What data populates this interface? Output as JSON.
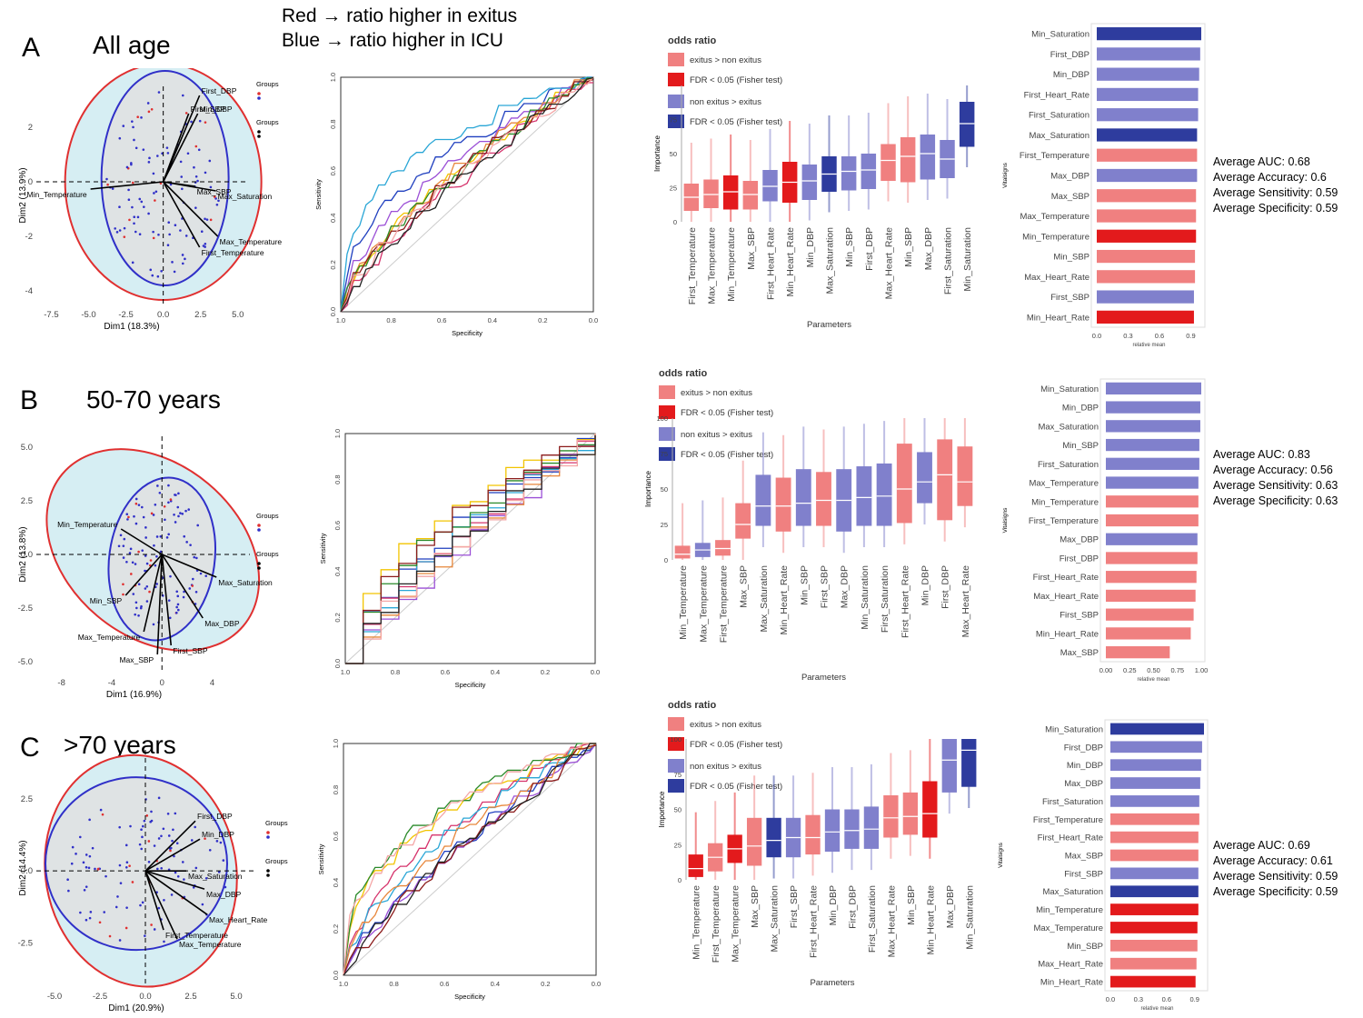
{
  "header": {
    "line1": "Red → ratio higher in exitus",
    "line2": "Blue → ratio higher in ICU"
  },
  "colors": {
    "red_light": "#f08080",
    "red_dark": "#e31a1c",
    "blue_light": "#8080cc",
    "blue_dark": "#2e3c9e",
    "pca_red": "#e03030",
    "pca_blue": "#3030c8",
    "pca_fill": "#d6eef3",
    "pca_overlap": "#e0e0e0"
  },
  "legend": {
    "title": "odds ratio",
    "items": [
      "exitus > non exitus",
      "FDR < 0.05 (Fisher test)",
      "non exitus > exitus",
      "FDR < 0.05 (Fisher test)"
    ]
  },
  "labels": {
    "pca_groups": "Groups",
    "importance_x": "Parameters",
    "importance_y": "Importance",
    "bar_x": "relative mean",
    "bar_y": "Vitalsigns",
    "roc_x": "Specificity",
    "roc_y": "Sensitivity"
  },
  "panels": [
    {
      "id": "A",
      "title": "All age",
      "pca": {
        "xlabel": "Dim1 (18.3%)",
        "ylabel": "Dim2 (13.9%)",
        "xticks": [
          "-7.5",
          "-5.0",
          "-2.5",
          "0.0",
          "2.5",
          "5.0"
        ],
        "yticks": [
          "2",
          "0",
          "-2",
          "-4"
        ],
        "vectors": [
          "First_DBP",
          "Min_DBP",
          "First_SBP",
          "Max_SBP",
          "Min_Temperature",
          "Max_Saturation",
          "Max_Temperature",
          "First_Temperature"
        ]
      },
      "stats": [
        "Average AUC: 0.68",
        "Average Accuracy: 0.6",
        "Average Sensitivity: 0.59",
        "Average Specificity: 0.59"
      ]
    },
    {
      "id": "B",
      "title": "50-70 years",
      "pca": {
        "xlabel": "Dim1 (16.9%)",
        "ylabel": "Dim2 (13.8%)",
        "xticks": [
          "-8",
          "-4",
          "0",
          "4"
        ],
        "yticks": [
          "5.0",
          "2.5",
          "0.0",
          "-2.5",
          "-5.0"
        ],
        "vectors": [
          "Min_Temperature",
          "Min_SBP",
          "Max_Temperature",
          "Max_Saturation",
          "Max_DBP",
          "First_SBP",
          "Max_SBP"
        ]
      },
      "stats": [
        "Average AUC: 0.83",
        "Average Accuracy: 0.56",
        "Average Sensitivity: 0.63",
        "Average Specificity: 0.63"
      ]
    },
    {
      "id": "C",
      "title": ">70 years",
      "pca": {
        "xlabel": "Dim1 (20.9%)",
        "ylabel": "Dim2 (14.4%)",
        "xticks": [
          "-5.0",
          "-2.5",
          "0.0",
          "2.5",
          "5.0"
        ],
        "yticks": [
          "2.5",
          "0.0",
          "-2.5"
        ],
        "vectors": [
          "First_DBP",
          "Min_DBP",
          "Max_Saturation",
          "Max_DBP",
          "Max_Heart_Rate",
          "First_Temperature",
          "Max_Temperature"
        ]
      },
      "stats": [
        "Average AUC: 0.69",
        "Average Accuracy: 0.61",
        "Average Sensitivity: 0.59",
        "Average Specificity: 0.59"
      ]
    }
  ],
  "chart_data": [
    {
      "type": "line",
      "panel": "A",
      "title": "ROC curves",
      "xlabel": "Specificity",
      "ylabel": "Sensitivity",
      "xticks": [
        "1.0",
        "0.8",
        "0.6",
        "0.4",
        "0.2",
        "0.0"
      ],
      "yticks": [
        "0.0",
        "0.2",
        "0.4",
        "0.6",
        "0.8",
        "1.0"
      ],
      "series_count": 10
    },
    {
      "type": "line",
      "panel": "B",
      "title": "ROC curves",
      "xlabel": "Specificity",
      "ylabel": "Sensitivity",
      "xticks": [
        "1.0",
        "0.8",
        "0.6",
        "0.4",
        "0.2",
        "0.0"
      ],
      "yticks": [
        "0.0",
        "0.2",
        "0.4",
        "0.6",
        "0.8",
        "1.0"
      ],
      "series_count": 10
    },
    {
      "type": "line",
      "panel": "C",
      "title": "ROC curves",
      "xlabel": "Specificity",
      "ylabel": "Sensitivity",
      "xticks": [
        "1.0",
        "0.8",
        "0.6",
        "0.4",
        "0.2",
        "0.0"
      ],
      "yticks": [
        "0.0",
        "0.2",
        "0.4",
        "0.6",
        "0.8",
        "1.0"
      ],
      "series_count": 10
    },
    {
      "type": "box",
      "panel": "A",
      "xlabel": "Parameters",
      "ylabel": "Importance",
      "ylim": [
        0,
        100
      ],
      "yticks": [
        "0",
        "25",
        "50",
        "75"
      ],
      "categories": [
        "First_Temperature",
        "Max_Temperature",
        "Min_Temperature",
        "Max_SBP",
        "First_Heart_Rate",
        "Min_Heart_Rate",
        "Min_DBP",
        "Max_Saturation",
        "Min_SBP",
        "First_DBP",
        "Max_Heart_Rate",
        "Min_SBP",
        "Max_DBP",
        "First_Saturation",
        "Min_Saturation"
      ],
      "medians": [
        18,
        20,
        22,
        20,
        26,
        29,
        30,
        35,
        37,
        38,
        45,
        48,
        50,
        46,
        72
      ],
      "q1": [
        8,
        10,
        9,
        9,
        15,
        14,
        16,
        22,
        23,
        24,
        30,
        29,
        31,
        32,
        55
      ],
      "q3": [
        28,
        31,
        34,
        30,
        38,
        44,
        42,
        48,
        48,
        50,
        57,
        62,
        64,
        60,
        88
      ],
      "groups": [
        "red_light",
        "red_light",
        "red_dark",
        "red_light",
        "blue_light",
        "red_dark",
        "blue_light",
        "blue_dark",
        "blue_light",
        "blue_light",
        "red_light",
        "red_light",
        "blue_light",
        "blue_light",
        "blue_dark"
      ]
    },
    {
      "type": "box",
      "panel": "B",
      "xlabel": "Parameters",
      "ylabel": "Importance",
      "ylim": [
        0,
        100
      ],
      "yticks": [
        "0",
        "25",
        "50",
        "75",
        "100"
      ],
      "categories": [
        "Min_Temperature",
        "Max_Temperature",
        "First_Temperature",
        "Max_SBP",
        "Max_Saturation",
        "Min_Heart_Rate",
        "Min_SBP",
        "First_SBP",
        "Max_DBP",
        "Min_Saturation",
        "First_Saturation",
        "First_Heart_Rate",
        "Min_DBP",
        "First_DBP",
        "Max_Heart_Rate"
      ],
      "medians": [
        4,
        7,
        8,
        25,
        38,
        38,
        40,
        42,
        42,
        44,
        45,
        50,
        55,
        60,
        55
      ],
      "q1": [
        1,
        2,
        3,
        15,
        24,
        20,
        24,
        24,
        20,
        24,
        24,
        26,
        40,
        28,
        38
      ],
      "q3": [
        10,
        12,
        14,
        40,
        60,
        58,
        64,
        62,
        64,
        66,
        68,
        82,
        76,
        85,
        80
      ],
      "groups": [
        "red_light",
        "blue_light",
        "red_light",
        "red_light",
        "blue_light",
        "red_light",
        "blue_light",
        "red_light",
        "blue_light",
        "blue_light",
        "blue_light",
        "red_light",
        "blue_light",
        "red_light",
        "red_light"
      ]
    },
    {
      "type": "box",
      "panel": "C",
      "xlabel": "Parameters",
      "ylabel": "Importance",
      "ylim": [
        0,
        100
      ],
      "yticks": [
        "0",
        "25",
        "50",
        "75",
        "100"
      ],
      "categories": [
        "Min_Temperature",
        "First_Temperature",
        "Max_Temperature",
        "Max_SBP",
        "Max_Saturation",
        "First_SBP",
        "First_Heart_Rate",
        "Min_DBP",
        "First_DBP",
        "First_Saturation",
        "Max_Heart_Rate",
        "Min_SBP",
        "Min_Heart_Rate",
        "Max_DBP",
        "Min_Saturation"
      ],
      "medians": [
        8,
        16,
        22,
        24,
        28,
        30,
        30,
        34,
        35,
        36,
        44,
        45,
        47,
        85,
        92
      ],
      "q1": [
        2,
        6,
        12,
        10,
        16,
        16,
        18,
        20,
        22,
        22,
        30,
        32,
        30,
        62,
        66
      ],
      "q3": [
        18,
        26,
        32,
        44,
        44,
        44,
        46,
        50,
        50,
        52,
        60,
        62,
        70,
        100,
        100
      ],
      "groups": [
        "red_dark",
        "red_light",
        "red_dark",
        "red_light",
        "blue_dark",
        "blue_light",
        "red_light",
        "blue_light",
        "blue_light",
        "blue_light",
        "red_light",
        "red_light",
        "red_dark",
        "blue_light",
        "blue_dark"
      ]
    },
    {
      "type": "bar",
      "panel": "A",
      "xlabel": "relative mean",
      "ylabel": "Vitalsigns",
      "xlim": [
        0,
        1.0
      ],
      "xticks": [
        "0.0",
        "0.3",
        "0.6",
        "0.9"
      ],
      "categories": [
        "Min_Saturation",
        "First_DBP",
        "Min_DBP",
        "First_Heart_Rate",
        "First_Saturation",
        "Max_Saturation",
        "First_Temperature",
        "Max_DBP",
        "Max_SBP",
        "Max_Temperature",
        "Min_Temperature",
        "Min_SBP",
        "Max_Heart_Rate",
        "First_SBP",
        "Min_Heart_Rate"
      ],
      "values": [
        1.0,
        0.99,
        0.98,
        0.97,
        0.97,
        0.96,
        0.96,
        0.96,
        0.95,
        0.95,
        0.95,
        0.94,
        0.94,
        0.93,
        0.93
      ],
      "groups": [
        "blue_dark",
        "blue_light",
        "blue_light",
        "blue_light",
        "blue_light",
        "blue_dark",
        "red_light",
        "blue_light",
        "red_light",
        "red_light",
        "red_dark",
        "red_light",
        "red_light",
        "blue_light",
        "red_dark"
      ]
    },
    {
      "type": "bar",
      "panel": "B",
      "xlabel": "relative mean",
      "ylabel": "Vitalsigns",
      "xlim": [
        0,
        1.0
      ],
      "xticks": [
        "0.00",
        "0.25",
        "0.50",
        "0.75",
        "1.00"
      ],
      "categories": [
        "Min_Saturation",
        "Min_DBP",
        "Max_Saturation",
        "Min_SBP",
        "First_Saturation",
        "Max_Temperature",
        "Min_Temperature",
        "First_Temperature",
        "Max_DBP",
        "First_DBP",
        "First_Heart_Rate",
        "Max_Heart_Rate",
        "First_SBP",
        "Min_Heart_Rate",
        "Max_SBP"
      ],
      "values": [
        1.0,
        0.99,
        0.99,
        0.98,
        0.98,
        0.97,
        0.97,
        0.97,
        0.96,
        0.96,
        0.95,
        0.94,
        0.92,
        0.89,
        0.67
      ],
      "groups": [
        "blue_light",
        "blue_light",
        "blue_light",
        "blue_light",
        "blue_light",
        "blue_light",
        "red_light",
        "red_light",
        "blue_light",
        "red_light",
        "red_light",
        "red_light",
        "red_light",
        "red_light",
        "red_light"
      ]
    },
    {
      "type": "bar",
      "panel": "C",
      "xlabel": "relative mean",
      "ylabel": "Vitalsigns",
      "xlim": [
        0,
        1.0
      ],
      "xticks": [
        "0.0",
        "0.3",
        "0.6",
        "0.9"
      ],
      "categories": [
        "Min_Saturation",
        "First_DBP",
        "Min_DBP",
        "Max_DBP",
        "First_Saturation",
        "First_Temperature",
        "First_Heart_Rate",
        "Max_SBP",
        "First_SBP",
        "Max_Saturation",
        "Min_Temperature",
        "Max_Temperature",
        "Min_SBP",
        "Max_Heart_Rate",
        "Min_Heart_Rate"
      ],
      "values": [
        1.0,
        0.98,
        0.97,
        0.96,
        0.95,
        0.95,
        0.94,
        0.94,
        0.94,
        0.94,
        0.94,
        0.93,
        0.93,
        0.92,
        0.91
      ],
      "groups": [
        "blue_dark",
        "blue_light",
        "blue_light",
        "blue_light",
        "blue_light",
        "red_light",
        "red_light",
        "red_light",
        "blue_light",
        "blue_dark",
        "red_dark",
        "red_dark",
        "red_light",
        "red_light",
        "red_dark"
      ]
    }
  ]
}
